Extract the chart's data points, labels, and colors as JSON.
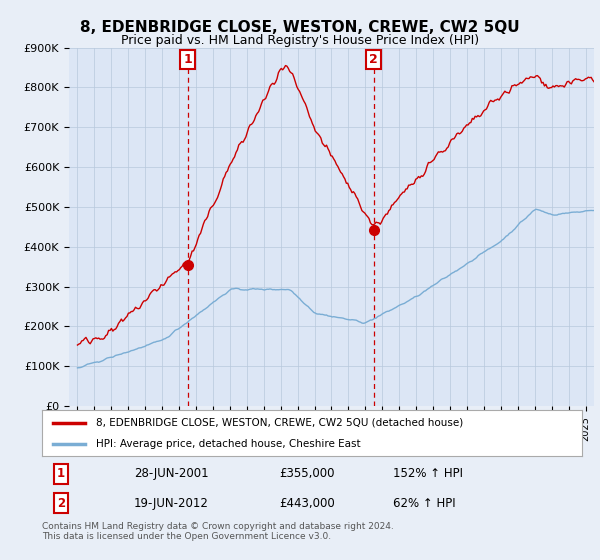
{
  "title": "8, EDENBRIDGE CLOSE, WESTON, CREWE, CW2 5QU",
  "subtitle": "Price paid vs. HM Land Registry's House Price Index (HPI)",
  "ylim": [
    0,
    900000
  ],
  "yticks": [
    0,
    100000,
    200000,
    300000,
    400000,
    500000,
    600000,
    700000,
    800000,
    900000
  ],
  "ytick_labels": [
    "£0",
    "£100K",
    "£200K",
    "£300K",
    "£400K",
    "£500K",
    "£600K",
    "£700K",
    "£800K",
    "£900K"
  ],
  "background_color": "#e8eef7",
  "plot_bg_color": "#dce6f5",
  "grid_color": "#b8c8dc",
  "hpi_color": "#7aadd4",
  "price_color": "#cc0000",
  "dashed_line_color": "#cc0000",
  "transaction1": {
    "date": "28-JUN-2001",
    "price": 355000,
    "label": "1",
    "pct": "152% ↑ HPI"
  },
  "transaction2": {
    "date": "19-JUN-2012",
    "price": 443000,
    "label": "2",
    "pct": "62% ↑ HPI"
  },
  "legend_label_red": "8, EDENBRIDGE CLOSE, WESTON, CREWE, CW2 5QU (detached house)",
  "legend_label_blue": "HPI: Average price, detached house, Cheshire East",
  "footnote": "Contains HM Land Registry data © Crown copyright and database right 2024.\nThis data is licensed under the Open Government Licence v3.0.",
  "x_min": 1994.5,
  "x_max": 2025.5,
  "transaction1_x": 2001.5,
  "transaction1_y": 355000,
  "transaction2_x": 2012.5,
  "transaction2_y": 443000
}
